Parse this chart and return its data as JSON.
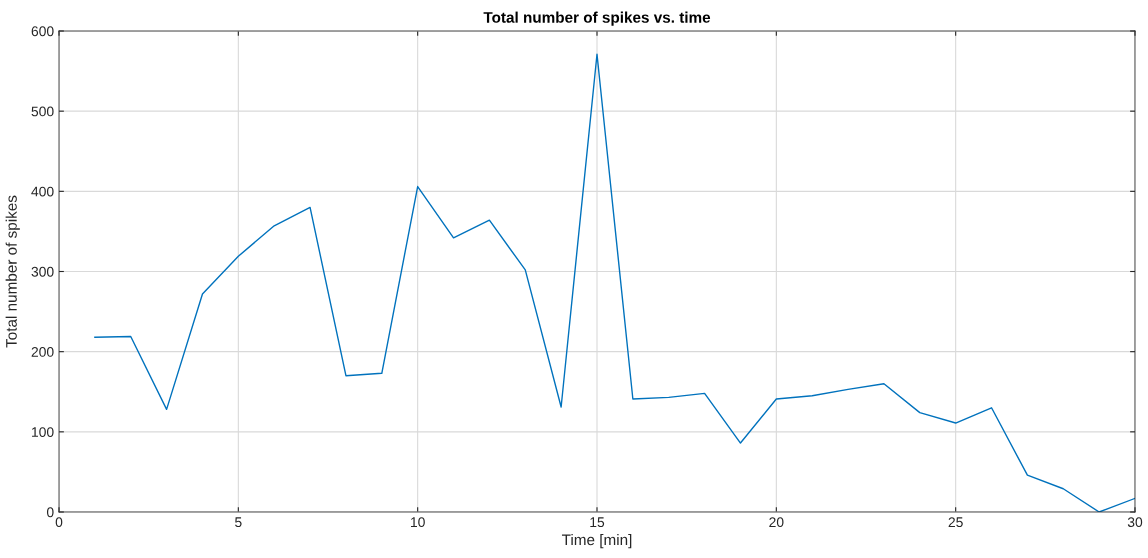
{
  "chart_data": {
    "type": "line",
    "title": "Total number of spikes vs. time",
    "xlabel": "Time [min]",
    "ylabel": "Total number of spikes",
    "x": [
      1,
      2,
      3,
      4,
      5,
      6,
      7,
      8,
      9,
      10,
      11,
      12,
      13,
      14,
      15,
      16,
      17,
      18,
      19,
      20,
      21,
      22,
      23,
      24,
      25,
      26,
      27,
      28,
      29,
      30
    ],
    "series": [
      {
        "color": "#0072bd",
        "values": [
          218,
          219,
          128,
          272,
          319,
          357,
          380,
          170,
          173,
          406,
          342,
          364,
          302,
          131,
          571,
          141,
          143,
          148,
          86,
          141,
          145,
          153,
          160,
          124,
          111,
          130,
          46,
          29,
          0,
          17
        ]
      }
    ],
    "xlim": [
      0,
      30
    ],
    "xticks": [
      0,
      5,
      10,
      15,
      20,
      25,
      30
    ],
    "ylim": [
      0,
      600
    ],
    "yticks": [
      0,
      100,
      200,
      300,
      400,
      500,
      600
    ],
    "grid": true,
    "marker": "none",
    "line_style": "solid"
  }
}
